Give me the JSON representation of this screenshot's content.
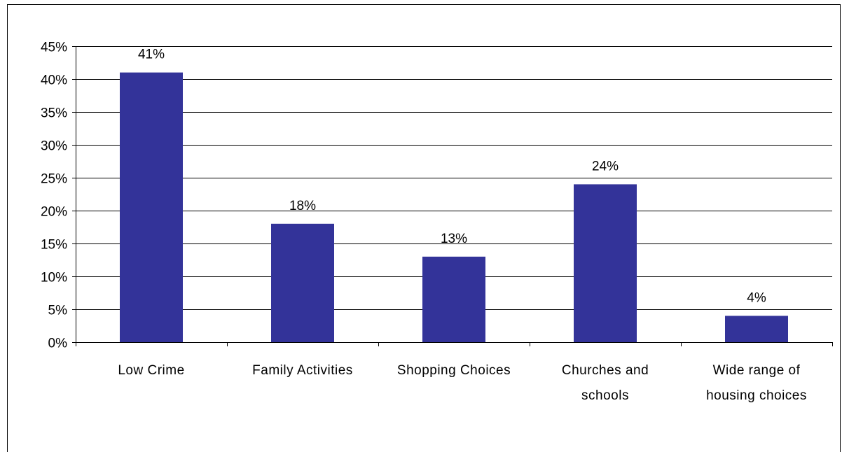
{
  "chart_data": {
    "type": "bar",
    "categories": [
      [
        "Low Crime"
      ],
      [
        "Family Activities"
      ],
      [
        "Shopping Choices"
      ],
      [
        "Churches and",
        "schools"
      ],
      [
        "Wide range of",
        "housing choices"
      ]
    ],
    "values": [
      41,
      18,
      13,
      24,
      4
    ],
    "data_labels": [
      "41%",
      "18%",
      "13%",
      "24%",
      "4%"
    ],
    "ylim": [
      0,
      45
    ],
    "yticks": [
      0,
      5,
      10,
      15,
      20,
      25,
      30,
      35,
      40,
      45
    ],
    "ytick_labels": [
      "0%",
      "5%",
      "10%",
      "15%",
      "20%",
      "25%",
      "30%",
      "35%",
      "40%",
      "45%"
    ],
    "title": "",
    "xlabel": "",
    "ylabel": "",
    "grid": "horizontal",
    "legend": "none",
    "bar_color": "#333399",
    "grid_color": "#000000"
  }
}
